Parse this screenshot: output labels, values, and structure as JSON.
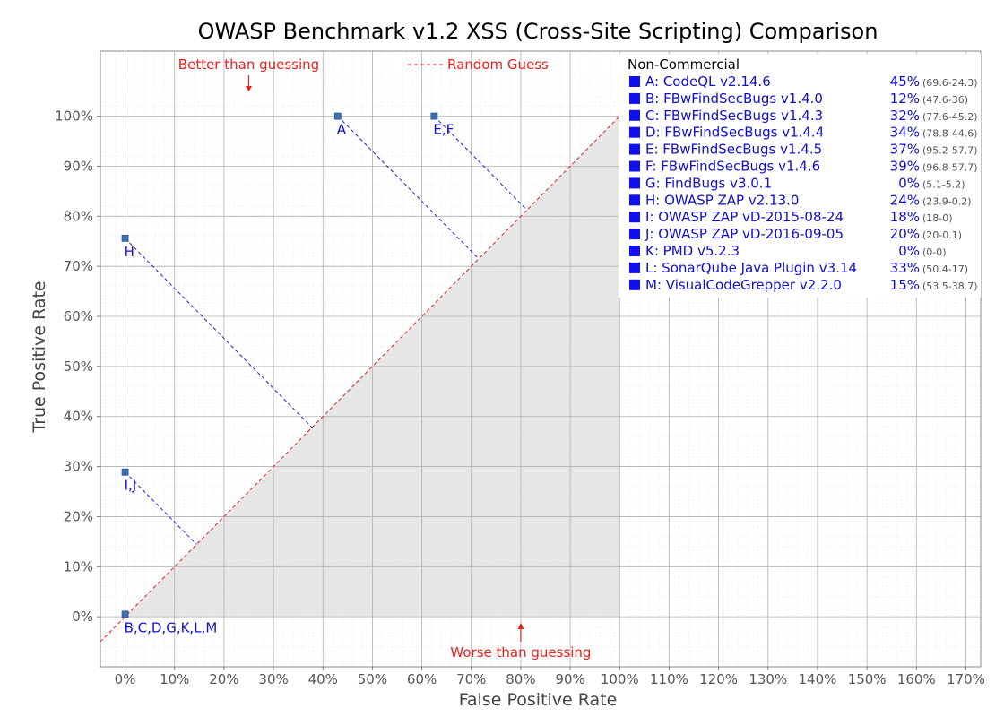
{
  "chart_data": {
    "type": "scatter",
    "title": "OWASP Benchmark v1.2 XSS (Cross-Site Scripting) Comparison",
    "xlabel": "False Positive Rate",
    "ylabel": "True Positive Rate",
    "xlim": [
      -5,
      173
    ],
    "ylim": [
      -10,
      113
    ],
    "x_ticks": [
      "0%",
      "10%",
      "20%",
      "30%",
      "40%",
      "50%",
      "60%",
      "70%",
      "80%",
      "90%",
      "100%",
      "110%",
      "120%",
      "130%",
      "140%",
      "150%",
      "160%",
      "170%"
    ],
    "y_ticks": [
      "0%",
      "10%",
      "20%",
      "30%",
      "40%",
      "50%",
      "60%",
      "70%",
      "80%",
      "90%",
      "100%"
    ],
    "grid": true,
    "random_guess_label": "Random Guess",
    "annotations": {
      "better": "Better than guessing",
      "worse": "Worse than guessing"
    },
    "points": [
      {
        "label": "A",
        "x": 43,
        "y": 100
      },
      {
        "label": "E,F",
        "x": 62.5,
        "y": 100
      },
      {
        "label": "H",
        "x": 0,
        "y": 75.6
      },
      {
        "label": "I,J",
        "x": 0,
        "y": 28.9
      },
      {
        "label": "B,C,D,G,K,L,M",
        "x": 0,
        "y": 0.5
      }
    ],
    "legend": {
      "title": "Non-Commercial",
      "placement": "right",
      "entries": [
        {
          "name": "A: CodeQL v2.14.6",
          "score": "45%",
          "range": "(69.6-24.3)"
        },
        {
          "name": "B: FBwFindSecBugs v1.4.0",
          "score": "12%",
          "range": "(47.6-36)"
        },
        {
          "name": "C: FBwFindSecBugs v1.4.3",
          "score": "32%",
          "range": "(77.6-45.2)"
        },
        {
          "name": "D: FBwFindSecBugs v1.4.4",
          "score": "34%",
          "range": "(78.8-44.6)"
        },
        {
          "name": "E: FBwFindSecBugs v1.4.5",
          "score": "37%",
          "range": "(95.2-57.7)"
        },
        {
          "name": "F: FBwFindSecBugs v1.4.6",
          "score": "39%",
          "range": "(96.8-57.7)"
        },
        {
          "name": "G: FindBugs v3.0.1",
          "score": "0%",
          "range": "(5.1-5.2)"
        },
        {
          "name": "H: OWASP ZAP v2.13.0",
          "score": "24%",
          "range": "(23.9-0.2)"
        },
        {
          "name": "I:   OWASP ZAP vD-2015-08-24",
          "score": "18%",
          "range": "(18-0)"
        },
        {
          "name": "J:  OWASP ZAP vD-2016-09-05",
          "score": "20%",
          "range": "(20-0.1)"
        },
        {
          "name": "K: PMD v5.2.3",
          "score": "0%",
          "range": "(0-0)"
        },
        {
          "name": "L: SonarQube Java Plugin v3.14",
          "score": "33%",
          "range": "(50.4-17)"
        },
        {
          "name": "M: VisualCodeGrepper v2.2.0",
          "score": "15%",
          "range": "(53.5-38.7)"
        }
      ]
    },
    "colors": {
      "points": "#3b6fb5",
      "labels": "#1010cc",
      "guess_line": "#e8201e",
      "annotation": "#e8201e",
      "shade": "#e6e6e6",
      "grid": "#b0b0b0"
    }
  }
}
